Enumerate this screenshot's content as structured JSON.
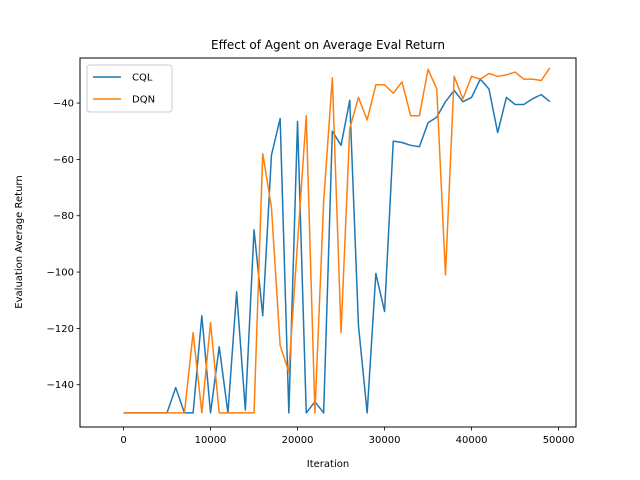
{
  "chart_data": {
    "type": "line",
    "title": "Effect of Agent on Average Eval Return",
    "xlabel": "Iteration",
    "ylabel": "Evaluation Average Return",
    "xlim": [
      -5000,
      52000
    ],
    "ylim": [
      -155,
      -24
    ],
    "xticks": [
      0,
      10000,
      20000,
      30000,
      40000,
      50000
    ],
    "yticks": [
      -140,
      -120,
      -100,
      -80,
      -60,
      -40
    ],
    "grid": false,
    "legend_position": "top-left",
    "x": [
      0,
      1000,
      2000,
      3000,
      4000,
      5000,
      6000,
      7000,
      8000,
      9000,
      10000,
      11000,
      12000,
      13000,
      14000,
      15000,
      16000,
      17000,
      18000,
      19000,
      20000,
      21000,
      22000,
      23000,
      24000,
      25000,
      26000,
      27000,
      28000,
      29000,
      30000,
      31000,
      32000,
      33000,
      34000,
      35000,
      36000,
      37000,
      38000,
      39000,
      40000,
      41000,
      42000,
      43000,
      44000,
      45000,
      46000,
      47000,
      48000,
      49000
    ],
    "series": [
      {
        "name": "CQL",
        "color": "#1f77b4",
        "values": [
          -150,
          -150,
          -150,
          -150,
          -150,
          -150,
          -141,
          -150,
          -150,
          -115.5,
          -150,
          -126.5,
          -150,
          -107,
          -149,
          -85,
          -115.5,
          -58.5,
          -45.5,
          -150,
          -46.5,
          -150,
          -146,
          -150,
          -50,
          -55,
          -39,
          -119,
          -150,
          -100.5,
          -114,
          -53.5,
          -54,
          -55,
          -55.5,
          -47,
          -45,
          -39.5,
          -35.5,
          -39.5,
          -38,
          -31.5,
          -35,
          -50.5,
          -38,
          -40.5,
          -40.5,
          -38.5,
          -37,
          -39.5
        ]
      },
      {
        "name": "DQN",
        "color": "#ff7f0e",
        "values": [
          -150,
          -150,
          -150,
          -150,
          -150,
          -150,
          -150,
          -150,
          -121.5,
          -150,
          -118,
          -150,
          -150,
          -150,
          -150,
          -150,
          -58,
          -77,
          -126,
          -135.5,
          -89.5,
          -44.5,
          -150,
          -75,
          -31,
          -121.5,
          -49,
          -38,
          -46,
          -33.5,
          -33.5,
          -36.5,
          -32.5,
          -44.5,
          -44.5,
          -28,
          -35,
          -101,
          -30.5,
          -38.5,
          -30.5,
          -31.5,
          -29.5,
          -30.5,
          -30,
          -29,
          -31.5,
          -31.5,
          -32,
          -27.5
        ]
      }
    ]
  }
}
